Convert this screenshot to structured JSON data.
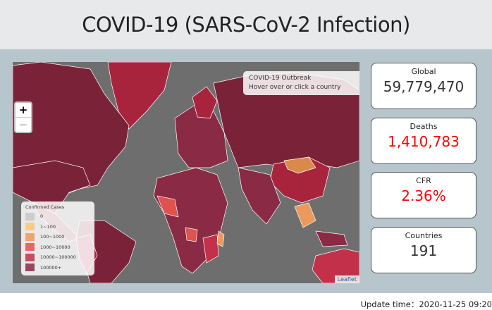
{
  "header": {
    "title": "COVID-19 (SARS-CoV-2 Infection)"
  },
  "map": {
    "info_title": "COVID-19 Outbreak",
    "info_text": "Hover over or click a country",
    "zoom_in": "+",
    "zoom_out": "−",
    "legend": {
      "title": "Confirmed Cases",
      "items": [
        {
          "label": "0",
          "color": "#c8c8c8"
        },
        {
          "label": "1~100",
          "color": "#f7c878"
        },
        {
          "label": "100~1000",
          "color": "#eb9a5c"
        },
        {
          "label": "1000~10000",
          "color": "#e0524e"
        },
        {
          "label": "10000~100000",
          "color": "#c2304a"
        },
        {
          "label": "100000+",
          "color": "#8c2848"
        }
      ]
    },
    "attribution": "Leaflet"
  },
  "cards": [
    {
      "label": "Global",
      "value": "59,779,470"
    },
    {
      "label": "Deaths",
      "value": "1,410,783"
    },
    {
      "label": "CFR",
      "value": "2.36%"
    },
    {
      "label": "Countries",
      "value": "191"
    }
  ],
  "footer": {
    "label": "Update time：",
    "value": "2020-11-25 09:20"
  }
}
